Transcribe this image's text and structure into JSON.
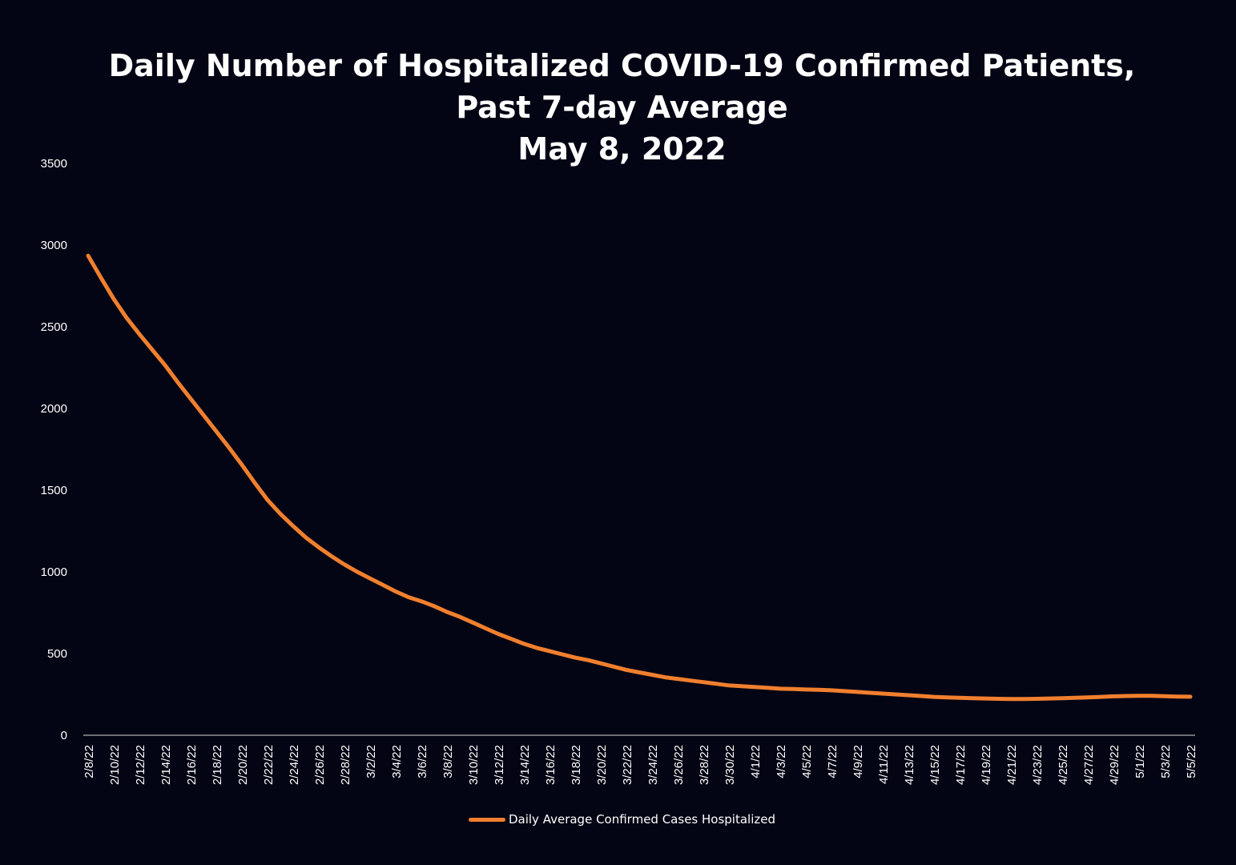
{
  "chart_data": {
    "type": "line",
    "title": [
      "Daily Number of Hospitalized COVID-19 Confirmed Patients,",
      "Past 7-day Average",
      "May 8, 2022"
    ],
    "xlabel": "",
    "ylabel": "",
    "ylim": [
      0,
      3500
    ],
    "yticks": [
      0,
      500,
      1000,
      1500,
      2000,
      2500,
      3000,
      3500
    ],
    "x_tick_labels": [
      "2/8/22",
      "2/10/22",
      "2/12/22",
      "2/14/22",
      "2/16/22",
      "2/18/22",
      "2/20/22",
      "2/22/22",
      "2/24/22",
      "2/26/22",
      "2/28/22",
      "3/2/22",
      "3/4/22",
      "3/6/22",
      "3/8/22",
      "3/10/22",
      "3/12/22",
      "3/14/22",
      "3/16/22",
      "3/18/22",
      "3/20/22",
      "3/22/22",
      "3/24/22",
      "3/26/22",
      "3/28/22",
      "3/30/22",
      "4/1/22",
      "4/3/22",
      "4/5/22",
      "4/7/22",
      "4/9/22",
      "4/11/22",
      "4/13/22",
      "4/15/22",
      "4/17/22",
      "4/19/22",
      "4/21/22",
      "4/23/22",
      "4/25/22",
      "4/27/22",
      "4/29/22",
      "5/1/22",
      "5/3/22",
      "5/5/22"
    ],
    "grid": false,
    "legend_position": "bottom",
    "series": [
      {
        "name": "Daily Average Confirmed Cases Hospitalized",
        "color": "#f07f2e",
        "x": [
          "2/8/22",
          "2/9/22",
          "2/10/22",
          "2/11/22",
          "2/12/22",
          "2/13/22",
          "2/14/22",
          "2/15/22",
          "2/16/22",
          "2/17/22",
          "2/18/22",
          "2/19/22",
          "2/20/22",
          "2/21/22",
          "2/22/22",
          "2/23/22",
          "2/24/22",
          "2/25/22",
          "2/26/22",
          "2/27/22",
          "2/28/22",
          "3/1/22",
          "3/2/22",
          "3/3/22",
          "3/4/22",
          "3/5/22",
          "3/6/22",
          "3/7/22",
          "3/8/22",
          "3/9/22",
          "3/10/22",
          "3/11/22",
          "3/12/22",
          "3/13/22",
          "3/14/22",
          "3/15/22",
          "3/16/22",
          "3/17/22",
          "3/18/22",
          "3/19/22",
          "3/20/22",
          "3/21/22",
          "3/22/22",
          "3/23/22",
          "3/24/22",
          "3/25/22",
          "3/26/22",
          "3/27/22",
          "3/28/22",
          "3/29/22",
          "3/30/22",
          "3/31/22",
          "4/1/22",
          "4/2/22",
          "4/3/22",
          "4/4/22",
          "4/5/22",
          "4/6/22",
          "4/7/22",
          "4/8/22",
          "4/9/22",
          "4/10/22",
          "4/11/22",
          "4/12/22",
          "4/13/22",
          "4/14/22",
          "4/15/22",
          "4/16/22",
          "4/17/22",
          "4/18/22",
          "4/19/22",
          "4/20/22",
          "4/21/22",
          "4/22/22",
          "4/23/22",
          "4/24/22",
          "4/25/22",
          "4/26/22",
          "4/27/22",
          "4/28/22",
          "4/29/22",
          "4/30/22",
          "5/1/22",
          "5/2/22",
          "5/3/22",
          "5/4/22",
          "5/5/22"
        ],
        "values": [
          2935,
          2800,
          2670,
          2555,
          2455,
          2360,
          2265,
          2160,
          2060,
          1960,
          1860,
          1760,
          1655,
          1545,
          1440,
          1355,
          1280,
          1210,
          1150,
          1095,
          1045,
          1000,
          960,
          920,
          880,
          845,
          820,
          790,
          755,
          725,
          690,
          655,
          620,
          590,
          560,
          535,
          515,
          495,
          475,
          460,
          440,
          420,
          400,
          385,
          370,
          355,
          345,
          335,
          325,
          315,
          305,
          300,
          295,
          290,
          285,
          283,
          280,
          278,
          275,
          270,
          265,
          260,
          255,
          250,
          245,
          240,
          235,
          232,
          229,
          227,
          225,
          223,
          222,
          222,
          223,
          225,
          227,
          229,
          232,
          235,
          238,
          240,
          241,
          241,
          239,
          237,
          236
        ]
      }
    ]
  }
}
